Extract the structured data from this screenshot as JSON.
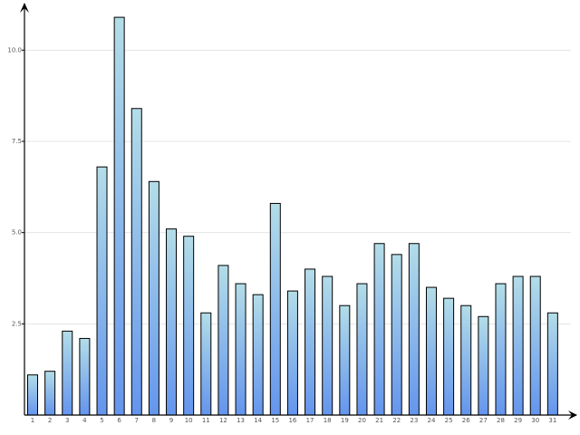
{
  "chart_data": {
    "type": "bar",
    "categories": [
      "1",
      "2",
      "3",
      "4",
      "5",
      "6",
      "7",
      "8",
      "9",
      "10",
      "11",
      "12",
      "13",
      "14",
      "15",
      "16",
      "17",
      "18",
      "19",
      "20",
      "21",
      "22",
      "23",
      "24",
      "25",
      "26",
      "27",
      "28",
      "29",
      "30",
      "31"
    ],
    "values": [
      1.1,
      1.2,
      2.3,
      2.1,
      6.8,
      10.9,
      8.4,
      6.4,
      5.1,
      4.9,
      2.8,
      4.1,
      3.6,
      3.3,
      5.8,
      3.4,
      4.0,
      3.8,
      3.0,
      3.6,
      4.7,
      4.4,
      4.7,
      3.5,
      3.2,
      3.0,
      2.7,
      3.6,
      3.8,
      3.8,
      2.8
    ],
    "gradient": [
      "#b3dde8",
      "#6495ed"
    ],
    "ylim": [
      0,
      11.25
    ],
    "yticks": [
      2.5,
      {
        "value": 5,
        "label": "5.0"
      },
      7.5,
      {
        "value": 10,
        "label": "10.0"
      }
    ],
    "grid": true
  }
}
